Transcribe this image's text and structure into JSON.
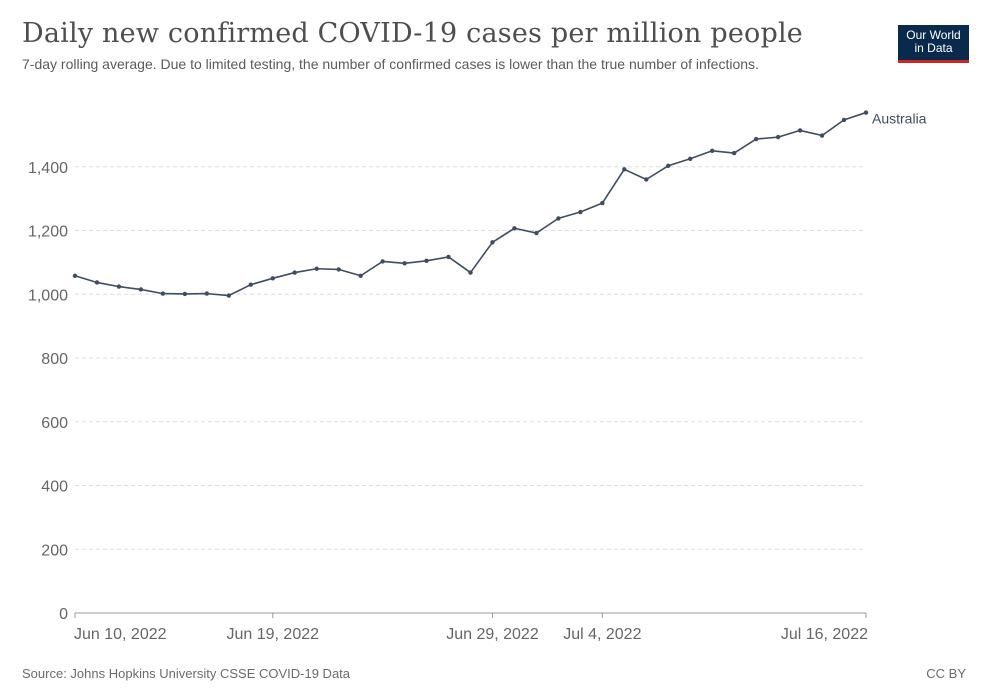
{
  "header": {
    "title": "Daily new confirmed COVID-19 cases per million people",
    "subtitle": "7-day rolling average. Due to limited testing, the number of confirmed cases is lower than the true number of infections."
  },
  "logo": {
    "line1": "Our World",
    "line2": "in Data"
  },
  "footer": {
    "source": "Source: Johns Hopkins University CSSE COVID-19 Data",
    "license": "CC BY"
  },
  "colors": {
    "line": "#3f4d63",
    "grid": "#dddddd",
    "logo_bg": "#0a2a4d",
    "logo_bar": "#ce261e"
  },
  "chart_data": {
    "type": "line",
    "title": "Daily new confirmed COVID-19 cases per million people",
    "subtitle": "7-day rolling average. Due to limited testing, the number of confirmed cases is lower than the true number of infections.",
    "ylim": [
      0,
      1600
    ],
    "yticks": [
      0,
      200,
      400,
      600,
      800,
      1000,
      1200,
      1400
    ],
    "ytick_labels": [
      "0",
      "200",
      "400",
      "600",
      "800",
      "1,000",
      "1,200",
      "1,400"
    ],
    "xlim": [
      "2022-06-10",
      "2022-07-16"
    ],
    "xticks": [
      {
        "date": "2022-06-10",
        "label": "Jun 10, 2022"
      },
      {
        "date": "2022-06-19",
        "label": "Jun 19, 2022"
      },
      {
        "date": "2022-06-29",
        "label": "Jun 29, 2022"
      },
      {
        "date": "2022-07-04",
        "label": "Jul 4, 2022"
      },
      {
        "date": "2022-07-16",
        "label": "Jul 16, 2022"
      }
    ],
    "grid": true,
    "legend": "inline label at line end",
    "series": [
      {
        "name": "Australia",
        "x": [
          "2022-06-10",
          "2022-06-11",
          "2022-06-12",
          "2022-06-13",
          "2022-06-14",
          "2022-06-15",
          "2022-06-16",
          "2022-06-17",
          "2022-06-18",
          "2022-06-19",
          "2022-06-20",
          "2022-06-21",
          "2022-06-22",
          "2022-06-23",
          "2022-06-24",
          "2022-06-25",
          "2022-06-26",
          "2022-06-27",
          "2022-06-28",
          "2022-06-29",
          "2022-06-30",
          "2022-07-01",
          "2022-07-02",
          "2022-07-03",
          "2022-07-04",
          "2022-07-05",
          "2022-07-06",
          "2022-07-07",
          "2022-07-08",
          "2022-07-09",
          "2022-07-10",
          "2022-07-11",
          "2022-07-12",
          "2022-07-13",
          "2022-07-14",
          "2022-07-15",
          "2022-07-16"
        ],
        "y": [
          1058,
          1037,
          1024,
          1015,
          1002,
          1001,
          1002,
          996,
          1030,
          1050,
          1068,
          1080,
          1078,
          1058,
          1103,
          1097,
          1105,
          1117,
          1068,
          1163,
          1207,
          1192,
          1238,
          1258,
          1286,
          1392,
          1360,
          1403,
          1425,
          1450,
          1443,
          1487,
          1493,
          1514,
          1498,
          1547,
          1570
        ]
      }
    ]
  }
}
